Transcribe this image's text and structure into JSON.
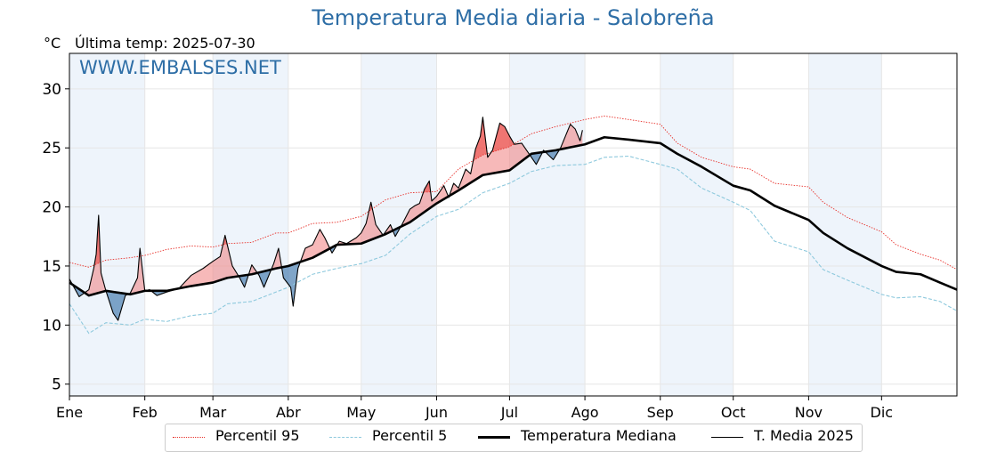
{
  "chart_data": {
    "type": "line",
    "title": "Temperatura Media diaria - Salobreña",
    "unit": "°C",
    "subtitle": "Última temp: 2025-07-30",
    "watermark": "WWW.EMBALSES.NET",
    "x_tick_labels": [
      "Ene",
      "Feb",
      "Mar",
      "Abr",
      "May",
      "Jun",
      "Jul",
      "Ago",
      "Sep",
      "Oct",
      "Nov",
      "Dic"
    ],
    "x_tick_days": [
      0,
      31,
      59,
      90,
      120,
      151,
      181,
      212,
      243,
      273,
      304,
      334
    ],
    "y_ticks": [
      5,
      10,
      15,
      20,
      25,
      30
    ],
    "ylim": [
      4,
      33
    ],
    "xlim": [
      0,
      365
    ],
    "grid": true,
    "legend_position": "bottom",
    "colors": {
      "title": "#2e6ea6",
      "p95": "#e8312b",
      "p5": "#8ec9dd",
      "median": "#000000",
      "current": "#000000",
      "above_fill": "#f08080",
      "below_fill": "#4a7fb0",
      "month_band": "#eef4fb"
    },
    "series": [
      {
        "name": "Percentil 95",
        "style": "dotted",
        "points": [
          [
            0,
            15.3
          ],
          [
            8,
            14.9
          ],
          [
            15,
            15.5
          ],
          [
            25,
            15.7
          ],
          [
            31,
            15.9
          ],
          [
            40,
            16.4
          ],
          [
            50,
            16.7
          ],
          [
            59,
            16.6
          ],
          [
            65,
            16.9
          ],
          [
            75,
            17.0
          ],
          [
            85,
            17.8
          ],
          [
            90,
            17.8
          ],
          [
            100,
            18.6
          ],
          [
            110,
            18.7
          ],
          [
            120,
            19.2
          ],
          [
            130,
            20.6
          ],
          [
            140,
            21.2
          ],
          [
            151,
            21.3
          ],
          [
            160,
            23.2
          ],
          [
            170,
            24.4
          ],
          [
            181,
            25.1
          ],
          [
            190,
            26.2
          ],
          [
            200,
            26.8
          ],
          [
            212,
            27.4
          ],
          [
            220,
            27.7
          ],
          [
            230,
            27.4
          ],
          [
            243,
            27.0
          ],
          [
            250,
            25.4
          ],
          [
            260,
            24.2
          ],
          [
            273,
            23.4
          ],
          [
            280,
            23.2
          ],
          [
            290,
            22.0
          ],
          [
            304,
            21.7
          ],
          [
            310,
            20.4
          ],
          [
            320,
            19.1
          ],
          [
            334,
            17.9
          ],
          [
            340,
            16.8
          ],
          [
            350,
            16.0
          ],
          [
            358,
            15.5
          ],
          [
            365,
            14.7
          ]
        ]
      },
      {
        "name": "Percentil 5",
        "style": "dashed",
        "points": [
          [
            0,
            11.8
          ],
          [
            8,
            9.3
          ],
          [
            15,
            10.2
          ],
          [
            25,
            10.0
          ],
          [
            31,
            10.5
          ],
          [
            40,
            10.3
          ],
          [
            50,
            10.8
          ],
          [
            59,
            11.0
          ],
          [
            65,
            11.8
          ],
          [
            75,
            12.0
          ],
          [
            85,
            12.8
          ],
          [
            90,
            13.2
          ],
          [
            100,
            14.3
          ],
          [
            110,
            14.8
          ],
          [
            120,
            15.2
          ],
          [
            130,
            15.9
          ],
          [
            140,
            17.7
          ],
          [
            151,
            19.2
          ],
          [
            160,
            19.8
          ],
          [
            170,
            21.2
          ],
          [
            181,
            22.0
          ],
          [
            190,
            23.0
          ],
          [
            200,
            23.5
          ],
          [
            212,
            23.6
          ],
          [
            220,
            24.2
          ],
          [
            230,
            24.3
          ],
          [
            243,
            23.6
          ],
          [
            250,
            23.2
          ],
          [
            260,
            21.6
          ],
          [
            273,
            20.4
          ],
          [
            280,
            19.7
          ],
          [
            290,
            17.1
          ],
          [
            304,
            16.2
          ],
          [
            310,
            14.7
          ],
          [
            320,
            13.8
          ],
          [
            334,
            12.6
          ],
          [
            340,
            12.3
          ],
          [
            350,
            12.4
          ],
          [
            358,
            12.0
          ],
          [
            365,
            11.2
          ]
        ]
      },
      {
        "name": "Temperatura Mediana",
        "style": "solid-thick",
        "points": [
          [
            0,
            13.6
          ],
          [
            8,
            12.5
          ],
          [
            15,
            12.9
          ],
          [
            25,
            12.6
          ],
          [
            31,
            12.9
          ],
          [
            40,
            12.9
          ],
          [
            50,
            13.3
          ],
          [
            59,
            13.6
          ],
          [
            65,
            14.0
          ],
          [
            75,
            14.3
          ],
          [
            85,
            14.8
          ],
          [
            90,
            15.0
          ],
          [
            100,
            15.7
          ],
          [
            110,
            16.8
          ],
          [
            120,
            16.9
          ],
          [
            130,
            17.7
          ],
          [
            140,
            18.7
          ],
          [
            151,
            20.3
          ],
          [
            160,
            21.4
          ],
          [
            170,
            22.7
          ],
          [
            181,
            23.1
          ],
          [
            190,
            24.5
          ],
          [
            200,
            24.8
          ],
          [
            212,
            25.3
          ],
          [
            220,
            25.9
          ],
          [
            230,
            25.7
          ],
          [
            243,
            25.4
          ],
          [
            250,
            24.5
          ],
          [
            260,
            23.4
          ],
          [
            273,
            21.8
          ],
          [
            280,
            21.4
          ],
          [
            290,
            20.1
          ],
          [
            304,
            18.9
          ],
          [
            310,
            17.8
          ],
          [
            320,
            16.5
          ],
          [
            334,
            15.0
          ],
          [
            340,
            14.5
          ],
          [
            350,
            14.3
          ],
          [
            358,
            13.6
          ],
          [
            365,
            13.0
          ]
        ]
      },
      {
        "name": "T. Media 2025",
        "style": "solid-thin",
        "points": [
          [
            0,
            13.9
          ],
          [
            4,
            12.4
          ],
          [
            8,
            13.0
          ],
          [
            10,
            14.8
          ],
          [
            11,
            16.0
          ],
          [
            12,
            19.3
          ],
          [
            13,
            14.4
          ],
          [
            15,
            12.9
          ],
          [
            18,
            11.0
          ],
          [
            20,
            10.4
          ],
          [
            23,
            12.5
          ],
          [
            25,
            12.7
          ],
          [
            28,
            14.0
          ],
          [
            29,
            16.5
          ],
          [
            31,
            12.9
          ],
          [
            33,
            13.0
          ],
          [
            36,
            12.5
          ],
          [
            40,
            12.8
          ],
          [
            45,
            13.1
          ],
          [
            50,
            14.2
          ],
          [
            55,
            14.8
          ],
          [
            59,
            15.4
          ],
          [
            62,
            15.8
          ],
          [
            64,
            17.6
          ],
          [
            67,
            15.0
          ],
          [
            70,
            14.0
          ],
          [
            72,
            13.2
          ],
          [
            75,
            15.1
          ],
          [
            78,
            14.2
          ],
          [
            80,
            13.2
          ],
          [
            84,
            15.2
          ],
          [
            86,
            16.5
          ],
          [
            88,
            14.0
          ],
          [
            91,
            13.2
          ],
          [
            92,
            11.6
          ],
          [
            94,
            14.8
          ],
          [
            97,
            16.5
          ],
          [
            100,
            16.8
          ],
          [
            103,
            18.1
          ],
          [
            105,
            17.4
          ],
          [
            108,
            16.1
          ],
          [
            111,
            17.1
          ],
          [
            114,
            16.9
          ],
          [
            118,
            17.4
          ],
          [
            120,
            17.8
          ],
          [
            122,
            18.6
          ],
          [
            124,
            20.4
          ],
          [
            126,
            18.5
          ],
          [
            129,
            17.6
          ],
          [
            132,
            18.5
          ],
          [
            134,
            17.5
          ],
          [
            137,
            18.6
          ],
          [
            140,
            19.8
          ],
          [
            142,
            20.1
          ],
          [
            144,
            20.3
          ],
          [
            146,
            21.5
          ],
          [
            148,
            22.2
          ],
          [
            149,
            20.5
          ],
          [
            151,
            20.9
          ],
          [
            154,
            21.8
          ],
          [
            156,
            20.8
          ],
          [
            158,
            22.0
          ],
          [
            160,
            21.6
          ],
          [
            163,
            23.2
          ],
          [
            165,
            22.8
          ],
          [
            167,
            24.9
          ],
          [
            169,
            26.0
          ],
          [
            170,
            27.6
          ],
          [
            172,
            24.2
          ],
          [
            174,
            24.8
          ],
          [
            177,
            27.1
          ],
          [
            179,
            26.8
          ],
          [
            181,
            26.0
          ],
          [
            183,
            25.3
          ],
          [
            186,
            25.4
          ],
          [
            189,
            24.5
          ],
          [
            192,
            23.6
          ],
          [
            195,
            24.8
          ],
          [
            199,
            24.0
          ],
          [
            202,
            25.0
          ],
          [
            206,
            27.0
          ],
          [
            208,
            26.6
          ],
          [
            210,
            25.6
          ],
          [
            211,
            26.5
          ]
        ]
      }
    ]
  },
  "legend": {
    "p95": "Percentil 95",
    "p5": "Percentil 5",
    "median": "Temperatura Mediana",
    "current": "T. Media 2025"
  }
}
